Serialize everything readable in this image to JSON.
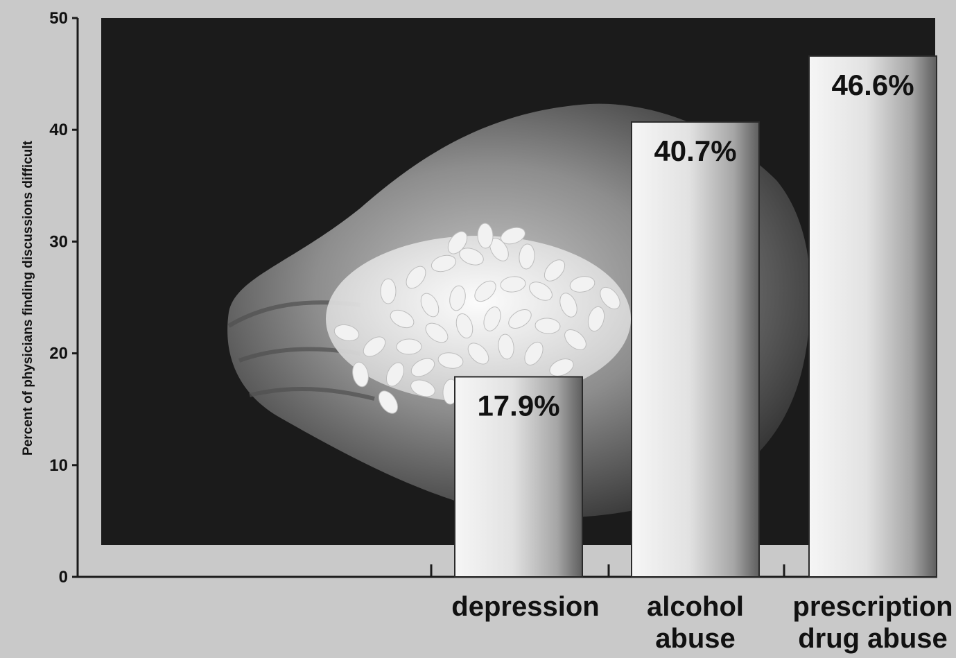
{
  "chart_data": {
    "type": "bar",
    "ylabel": "Percent of physicians finding discussions difficult",
    "ylim": [
      0,
      50
    ],
    "yticks": [
      0,
      10,
      20,
      30,
      40,
      50
    ],
    "categories": [
      [
        "depression"
      ],
      [
        "alcohol",
        "abuse"
      ],
      [
        "prescription",
        "drug abuse"
      ]
    ],
    "values": [
      17.9,
      40.7,
      46.6
    ],
    "data_labels": [
      "17.9%",
      "40.7%",
      "46.6%"
    ],
    "grid": false,
    "legend": "none",
    "background_image": "hand-holding-pills-photo"
  },
  "colors": {
    "page_background": "#c9c9c9",
    "photo_background": "#1b1b1b",
    "axis": "#1a1a1a",
    "bar_light": "#f4f4f4",
    "bar_dark": "#6e6e6e",
    "text": "#111111"
  }
}
